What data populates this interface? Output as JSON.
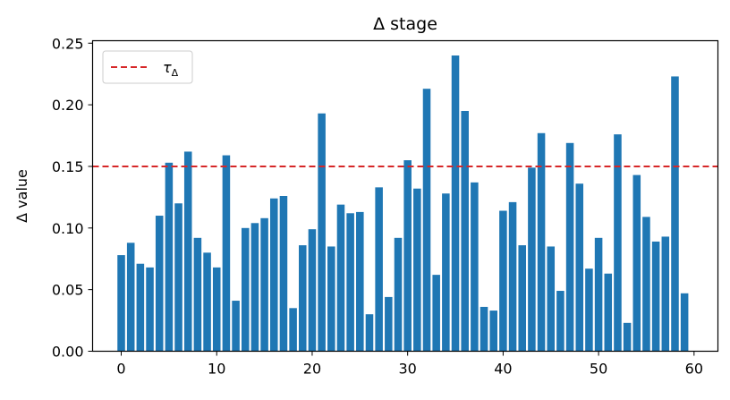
{
  "chart_data": {
    "type": "bar",
    "title": "Δ stage",
    "xlabel": "",
    "ylabel": "Δ value",
    "xlim": [
      -3,
      62.5
    ],
    "ylim": [
      0,
      0.252
    ],
    "x_ticks": [
      0,
      10,
      20,
      30,
      40,
      50,
      60
    ],
    "y_ticks": [
      0.0,
      0.05,
      0.1,
      0.15,
      0.2,
      0.25
    ],
    "x": [
      0,
      1,
      2,
      3,
      4,
      5,
      6,
      7,
      8,
      9,
      10,
      11,
      12,
      13,
      14,
      15,
      16,
      17,
      18,
      19,
      20,
      21,
      22,
      23,
      24,
      25,
      26,
      27,
      28,
      29,
      30,
      31,
      32,
      33,
      34,
      35,
      36,
      37,
      38,
      39,
      40,
      41,
      42,
      43,
      44,
      45,
      46,
      47,
      48,
      49,
      50,
      51,
      52,
      53,
      54,
      55,
      56,
      57,
      58,
      59
    ],
    "values": [
      0.078,
      0.088,
      0.071,
      0.068,
      0.11,
      0.153,
      0.12,
      0.162,
      0.092,
      0.08,
      0.068,
      0.159,
      0.041,
      0.1,
      0.104,
      0.108,
      0.124,
      0.126,
      0.035,
      0.086,
      0.099,
      0.193,
      0.085,
      0.119,
      0.112,
      0.113,
      0.03,
      0.133,
      0.044,
      0.092,
      0.155,
      0.132,
      0.213,
      0.062,
      0.128,
      0.24,
      0.195,
      0.137,
      0.036,
      0.033,
      0.114,
      0.121,
      0.086,
      0.149,
      0.177,
      0.085,
      0.049,
      0.169,
      0.136,
      0.067,
      0.092,
      0.063,
      0.176,
      0.023,
      0.143,
      0.109,
      0.089,
      0.093,
      0.223,
      0.047
    ],
    "bar_color": "#1f77b4",
    "threshold": {
      "value": 0.15,
      "color": "#d62728",
      "style": "dashed",
      "legend_label": "τ",
      "legend_subscript": "Δ"
    },
    "legend_position": "top-left",
    "grid": false
  }
}
